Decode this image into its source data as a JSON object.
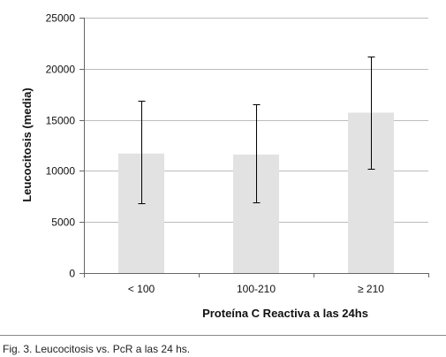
{
  "chart_data": {
    "type": "bar",
    "categories": [
      "< 100",
      "100-210",
      "≥ 210"
    ],
    "values": [
      11700,
      11600,
      15700
    ],
    "error_bars": {
      "upper": [
        16900,
        16500,
        21200
      ],
      "lower": [
        6800,
        6900,
        10200
      ]
    },
    "ylabel": "Leucocitosis (media)",
    "xlabel": "Proteína C Reactiva a las 24hs",
    "ylim": [
      0,
      25000
    ],
    "yticks": [
      0,
      5000,
      10000,
      15000,
      20000,
      25000
    ],
    "ytick_labels": [
      "0",
      "5000",
      "10000",
      "15000",
      "20000",
      "25000"
    ],
    "grid": true,
    "bar_color": "#e2e2e2",
    "grid_color": "#bcbcbc",
    "error_bar_color": "#000000"
  },
  "caption": "Fig. 3. Leucocitosis vs. PcR a las 24 hs."
}
